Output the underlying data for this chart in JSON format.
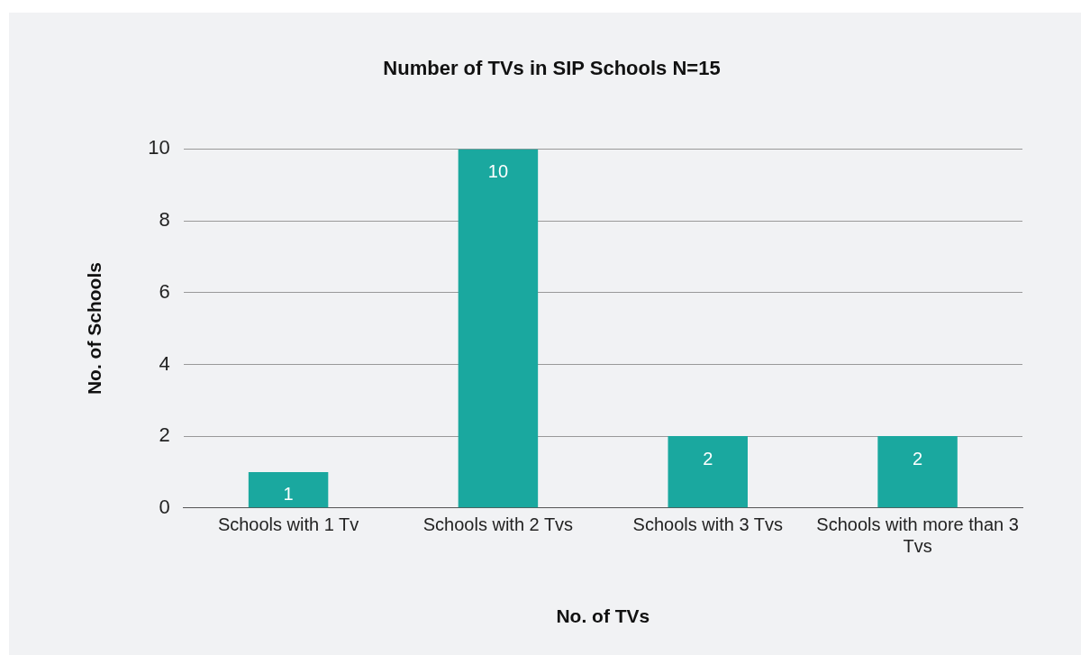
{
  "chart_data": {
    "type": "bar",
    "title": "Number of TVs in SIP Schools N=15",
    "xlabel": "No. of TVs",
    "ylabel": "No. of Schools",
    "categories": [
      "Schools with 1 Tv",
      "Schools with 2 Tvs",
      "Schools with 3 Tvs",
      "Schools with more than 3 Tvs"
    ],
    "values": [
      1,
      10,
      2,
      2
    ],
    "color": "#1aa89f",
    "ylim": [
      0,
      10
    ],
    "yticks": [
      0,
      2,
      4,
      6,
      8,
      10
    ],
    "grid": "y",
    "legend": false,
    "data_labels": true
  }
}
